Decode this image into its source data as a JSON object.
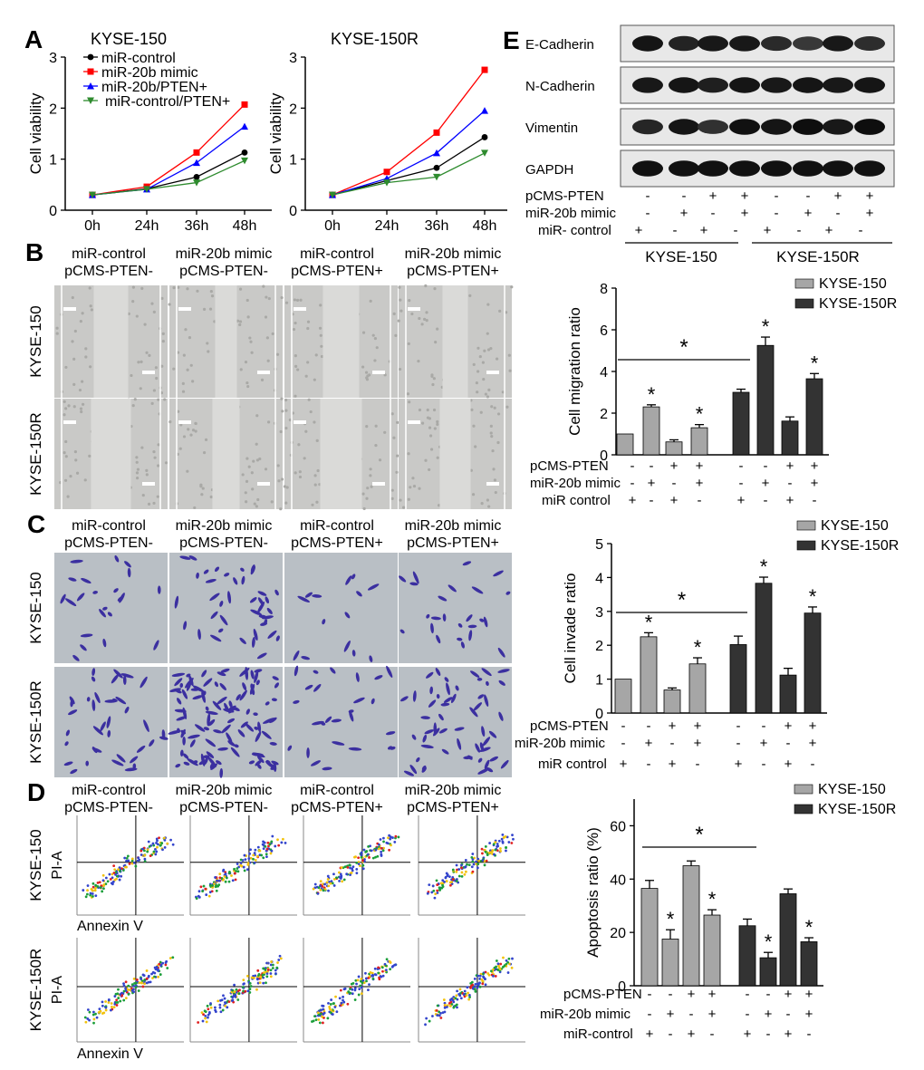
{
  "panels": {
    "A": {
      "letter": "A",
      "charts": [
        {
          "title": "KYSE-150",
          "ylabel": "Cell viability",
          "xticks": [
            "0h",
            "24h",
            "36h",
            "48h"
          ],
          "yticks": [
            "0",
            "1",
            "2",
            "3"
          ],
          "ylim": [
            0,
            3
          ],
          "series": [
            {
              "name": "miR-control",
              "color": "#000000",
              "marker": "circle",
              "values": [
                0.3,
                0.42,
                0.65,
                1.13
              ]
            },
            {
              "name": "miR-20b mimic",
              "color": "#ff0000",
              "marker": "square",
              "values": [
                0.3,
                0.46,
                1.13,
                2.07
              ]
            },
            {
              "name": "miR-20b/PTEN+",
              "color": "#0000ff",
              "marker": "triangle-up",
              "values": [
                0.3,
                0.41,
                0.93,
                1.64
              ]
            },
            {
              "name": "miR-control/PTEN+",
              "color": "#2e8b2e",
              "marker": "triangle-down",
              "values": [
                0.3,
                0.41,
                0.54,
                0.97
              ]
            }
          ]
        },
        {
          "title": "KYSE-150R",
          "ylabel": "Cell viability",
          "xticks": [
            "0h",
            "24h",
            "36h",
            "48h"
          ],
          "yticks": [
            "0",
            "1",
            "2",
            "3"
          ],
          "ylim": [
            0,
            3
          ],
          "series": [
            {
              "name": "miR-control",
              "color": "#000000",
              "marker": "circle",
              "values": [
                0.3,
                0.58,
                0.83,
                1.43
              ]
            },
            {
              "name": "miR-20b mimic",
              "color": "#ff0000",
              "marker": "square",
              "values": [
                0.3,
                0.75,
                1.52,
                2.75
              ]
            },
            {
              "name": "miR-20b/PTEN+",
              "color": "#0000ff",
              "marker": "triangle-up",
              "values": [
                0.3,
                0.62,
                1.12,
                1.95
              ]
            },
            {
              "name": "miR-control/PTEN+",
              "color": "#2e8b2e",
              "marker": "triangle-down",
              "values": [
                0.3,
                0.54,
                0.65,
                1.12
              ]
            }
          ]
        }
      ]
    },
    "B": {
      "letter": "B",
      "col_headers": [
        {
          "line1": "miR-control",
          "line2": "pCMS-PTEN-"
        },
        {
          "line1": "miR-20b mimic",
          "line2": "pCMS-PTEN-"
        },
        {
          "line1": "miR-control",
          "line2": "pCMS-PTEN+"
        },
        {
          "line1": "miR-20b mimic",
          "line2": "pCMS-PTEN+"
        }
      ],
      "row_labels": [
        "KYSE-150",
        "KYSE-150R"
      ]
    },
    "C": {
      "letter": "C",
      "col_headers": [
        {
          "line1": "miR-control",
          "line2": "pCMS-PTEN-"
        },
        {
          "line1": "miR-20b mimic",
          "line2": "pCMS-PTEN-"
        },
        {
          "line1": "miR-control",
          "line2": "pCMS-PTEN+"
        },
        {
          "line1": "miR-20b mimic",
          "line2": "pCMS-PTEN+"
        }
      ],
      "row_labels": [
        "KYSE-150",
        "KYSE-150R"
      ]
    },
    "D": {
      "letter": "D",
      "col_headers": [
        {
          "line1": "miR-control",
          "line2": "pCMS-PTEN-"
        },
        {
          "line1": "miR-20b mimic",
          "line2": "pCMS-PTEN-"
        },
        {
          "line1": "miR-control",
          "line2": "pCMS-PTEN+"
        },
        {
          "line1": "miR-20b mimic",
          "line2": "pCMS-PTEN+"
        }
      ],
      "row_labels": [
        "KYSE-150",
        "KYSE-150R"
      ],
      "y_axis": "PI-A",
      "x_axis": "Annexin V"
    },
    "E": {
      "letter": "E",
      "bands": [
        "E-Cadherin",
        "N-Cadherin",
        "Vimentin",
        "GAPDH"
      ],
      "band_intensity": {
        "E-Cadherin": [
          0.85,
          0.65,
          0.8,
          0.8,
          0.55,
          0.35,
          0.8,
          0.5
        ],
        "N-Cadherin": [
          0.8,
          0.85,
          0.7,
          0.85,
          0.8,
          0.85,
          0.8,
          0.85
        ],
        "Vimentin": [
          0.6,
          0.85,
          0.45,
          0.9,
          0.85,
          0.95,
          0.8,
          0.95
        ],
        "GAPDH": [
          0.9,
          0.9,
          0.9,
          0.9,
          0.9,
          0.9,
          0.9,
          0.9
        ]
      },
      "conditions": [
        {
          "label": "pCMS-PTEN",
          "marks": [
            "-",
            "-",
            "+",
            "+",
            "-",
            "-",
            "+",
            "+"
          ]
        },
        {
          "label": "miR-20b mimic",
          "marks": [
            "-",
            "+",
            "-",
            "+",
            "-",
            "+",
            "-",
            "+"
          ]
        },
        {
          "label": "miR- control",
          "marks": [
            "+",
            "-",
            "+",
            "-",
            "+",
            "-",
            "+",
            "-"
          ]
        }
      ],
      "groups": [
        "KYSE-150",
        "KYSE-150R"
      ]
    }
  },
  "chart_data": [
    {
      "type": "line",
      "title": "KYSE-150",
      "xlabel": "",
      "ylabel": "Cell viability",
      "x": [
        "0h",
        "24h",
        "36h",
        "48h"
      ],
      "ylim": [
        0,
        3
      ],
      "series": [
        {
          "name": "miR-control",
          "values": [
            0.3,
            0.42,
            0.65,
            1.13
          ]
        },
        {
          "name": "miR-20b mimic",
          "values": [
            0.3,
            0.46,
            1.13,
            2.07
          ]
        },
        {
          "name": "miR-20b/PTEN+",
          "values": [
            0.3,
            0.41,
            0.93,
            1.64
          ]
        },
        {
          "name": "miR-control/PTEN+",
          "values": [
            0.3,
            0.41,
            0.54,
            0.97
          ]
        }
      ]
    },
    {
      "type": "line",
      "title": "KYSE-150R",
      "xlabel": "",
      "ylabel": "Cell viability",
      "x": [
        "0h",
        "24h",
        "36h",
        "48h"
      ],
      "ylim": [
        0,
        3
      ],
      "series": [
        {
          "name": "miR-control",
          "values": [
            0.3,
            0.58,
            0.83,
            1.43
          ]
        },
        {
          "name": "miR-20b mimic",
          "values": [
            0.3,
            0.75,
            1.52,
            2.75
          ]
        },
        {
          "name": "miR-20b/PTEN+",
          "values": [
            0.3,
            0.62,
            1.12,
            1.95
          ]
        },
        {
          "name": "miR-control/PTEN+",
          "values": [
            0.3,
            0.54,
            0.65,
            1.12
          ]
        }
      ]
    },
    {
      "type": "bar",
      "ylabel": "Cell migration ratio",
      "ylim": [
        0,
        8
      ],
      "yticks": [
        "0",
        "2",
        "4",
        "6",
        "8"
      ],
      "legend": [
        "KYSE-150",
        "KYSE-150R"
      ],
      "legend_colors": [
        "#a6a6a6",
        "#333333"
      ],
      "rows": [
        {
          "label": "pCMS-PTEN",
          "marks": [
            "-",
            "-",
            "+",
            "+",
            "-",
            "-",
            "+",
            "+"
          ]
        },
        {
          "label": "miR-20b mimic",
          "marks": [
            "-",
            "+",
            "-",
            "+",
            "-",
            "+",
            "-",
            "+"
          ]
        },
        {
          "label": "miR control",
          "marks": [
            "+",
            "-",
            "+",
            "-",
            "+",
            "-",
            "+",
            "-"
          ]
        }
      ],
      "series": [
        {
          "name": "KYSE-150",
          "values": [
            1.0,
            2.3,
            0.62,
            1.3
          ],
          "errors": [
            0,
            0.1,
            0.1,
            0.15
          ],
          "stars": [
            false,
            true,
            false,
            true
          ]
        },
        {
          "name": "KYSE-150R",
          "values": [
            3.0,
            5.25,
            1.62,
            3.65
          ],
          "errors": [
            0.15,
            0.4,
            0.2,
            0.25
          ],
          "stars": [
            false,
            true,
            false,
            true
          ]
        }
      ],
      "bracket": {
        "from": 0,
        "to": 4,
        "label": "*"
      }
    },
    {
      "type": "bar",
      "ylabel": "Cell invade ratio",
      "ylim": [
        0,
        5
      ],
      "yticks": [
        "0",
        "1",
        "2",
        "3",
        "4",
        "5"
      ],
      "legend": [
        "KYSE-150",
        "KYSE-150R"
      ],
      "legend_colors": [
        "#a6a6a6",
        "#333333"
      ],
      "rows": [
        {
          "label": "pCMS-PTEN",
          "marks": [
            "-",
            "-",
            "+",
            "+",
            "-",
            "-",
            "+",
            "+"
          ]
        },
        {
          "label": "miR-20b mimic",
          "marks": [
            "-",
            "+",
            "-",
            "+",
            "-",
            "+",
            "-",
            "+"
          ]
        },
        {
          "label": "miR control",
          "marks": [
            "+",
            "-",
            "+",
            "-",
            "+",
            "-",
            "+",
            "-"
          ]
        }
      ],
      "series": [
        {
          "name": "KYSE-150",
          "values": [
            1.0,
            2.25,
            0.68,
            1.45
          ],
          "errors": [
            0,
            0.12,
            0.06,
            0.18
          ],
          "stars": [
            false,
            true,
            false,
            true
          ]
        },
        {
          "name": "KYSE-150R",
          "values": [
            2.02,
            3.83,
            1.12,
            2.95
          ],
          "errors": [
            0.25,
            0.18,
            0.2,
            0.18
          ],
          "stars": [
            false,
            true,
            false,
            true
          ]
        }
      ],
      "bracket": {
        "from": 0,
        "to": 4,
        "label": "*"
      }
    },
    {
      "type": "bar",
      "ylabel": "Apoptosis ratio (%)",
      "ylim": [
        0,
        70
      ],
      "yticks": [
        "0",
        "20",
        "40",
        "60"
      ],
      "legend": [
        "KYSE-150",
        "KYSE-150R"
      ],
      "legend_colors": [
        "#a6a6a6",
        "#333333"
      ],
      "rows": [
        {
          "label": "pCMS-PTEN",
          "marks": [
            "-",
            "-",
            "+",
            "+",
            "-",
            "-",
            "+",
            "+"
          ]
        },
        {
          "label": "miR-20b mimic",
          "marks": [
            "-",
            "+",
            "-",
            "+",
            "-",
            "+",
            "-",
            "+"
          ]
        },
        {
          "label": "miR-control",
          "marks": [
            "+",
            "-",
            "+",
            "-",
            "+",
            "-",
            "+",
            "-"
          ]
        }
      ],
      "series": [
        {
          "name": "KYSE-150",
          "values": [
            36.5,
            17.5,
            45.0,
            26.5
          ],
          "errors": [
            3.0,
            3.5,
            1.8,
            2.0
          ],
          "stars": [
            false,
            true,
            false,
            true
          ]
        },
        {
          "name": "KYSE-150R",
          "values": [
            22.5,
            10.5,
            34.5,
            16.5
          ],
          "errors": [
            2.5,
            2.0,
            1.8,
            1.5
          ],
          "stars": [
            false,
            true,
            false,
            true
          ]
        }
      ],
      "bracket": {
        "from": 0,
        "to": 4,
        "label": "*"
      }
    }
  ]
}
